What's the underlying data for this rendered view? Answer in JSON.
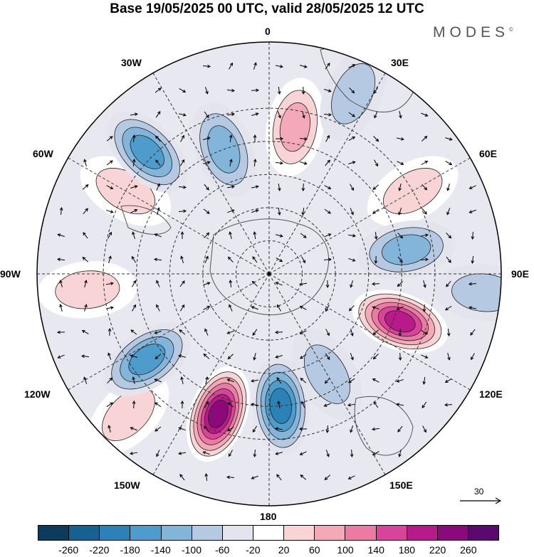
{
  "title": "Base 19/05/2025 00 UTC, valid 28/05/2025 12 UTC",
  "brand": "MODES",
  "brand_mark": "©",
  "longitude_labels": {
    "n0": "0",
    "e30": "30E",
    "e60": "60E",
    "e90": "90E",
    "e120": "120E",
    "e150": "150E",
    "s180": "180",
    "w150": "150W",
    "w120": "120W",
    "w90": "90W",
    "w60": "60W",
    "w30": "30W"
  },
  "vector_reference": "30",
  "colorbar": {
    "colors": [
      "#0d3b5c",
      "#16618f",
      "#2b82b6",
      "#4e9ccb",
      "#82b5d9",
      "#b5c9e3",
      "#e4e4ef",
      "#ffffff",
      "#f9d4d6",
      "#f4a9b8",
      "#ec7ba4",
      "#d9449a",
      "#b81a89",
      "#8a0a7a",
      "#5a0a6e"
    ],
    "ticks": [
      "-260",
      "-220",
      "-180",
      "-140",
      "-100",
      "-60",
      "-20",
      "20",
      "60",
      "100",
      "140",
      "180",
      "220",
      "260"
    ]
  },
  "anomalies": [
    {
      "lon": 200,
      "lat": -45,
      "value": 260
    },
    {
      "lon": 110,
      "lat": -48,
      "value": 220
    },
    {
      "lon": 10,
      "lat": -45,
      "value": 100
    },
    {
      "lon": 60,
      "lat": -40,
      "value": 60
    },
    {
      "lon": 300,
      "lat": -40,
      "value": 60
    },
    {
      "lon": 265,
      "lat": -35,
      "value": 60
    },
    {
      "lon": 225,
      "lat": -30,
      "value": 60
    },
    {
      "lon": 25,
      "lat": -30,
      "value": -60
    },
    {
      "lon": 315,
      "lat": -38,
      "value": -140
    },
    {
      "lon": 340,
      "lat": -50,
      "value": -100
    },
    {
      "lon": 80,
      "lat": -48,
      "value": -100
    },
    {
      "lon": 95,
      "lat": -25,
      "value": -60
    },
    {
      "lon": 235,
      "lat": -45,
      "value": -140
    },
    {
      "lon": 175,
      "lat": -50,
      "value": -180
    },
    {
      "lon": 150,
      "lat": -55,
      "value": -60
    }
  ]
}
